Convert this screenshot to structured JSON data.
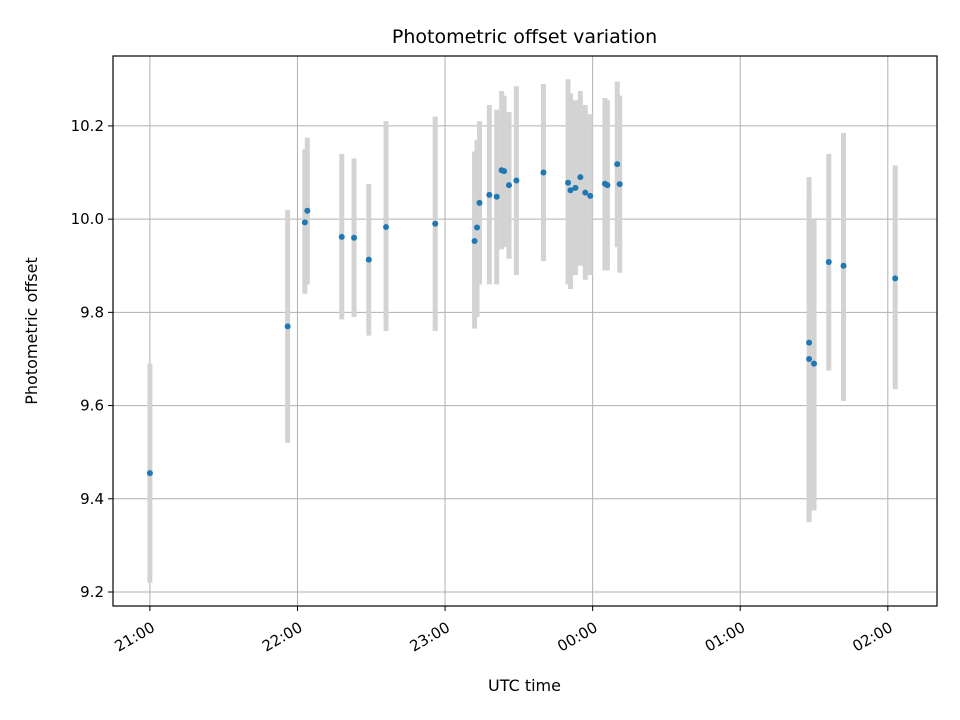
{
  "chart_data": {
    "type": "scatter",
    "title": "Photometric offset variation",
    "xlabel": "UTC time",
    "ylabel": "Photometric offset",
    "x_axis_type": "time",
    "x_reference_day": "day 0",
    "xlim": [
      "20:45",
      "02:20"
    ],
    "ylim": [
      9.17,
      10.35
    ],
    "x_ticks": [
      {
        "label": "21:00",
        "minutes": 1260
      },
      {
        "label": "22:00",
        "minutes": 1320
      },
      {
        "label": "23:00",
        "minutes": 1380
      },
      {
        "label": "00:00",
        "minutes": 1440
      },
      {
        "label": "01:00",
        "minutes": 1500
      },
      {
        "label": "02:00",
        "minutes": 1560
      }
    ],
    "y_ticks": [
      9.2,
      9.4,
      9.6,
      9.8,
      10.0,
      10.2
    ],
    "y_tick_labels": [
      "9.2",
      "9.4",
      "9.6",
      "9.8",
      "10.0",
      "10.2"
    ],
    "grid": true,
    "marker_color": "#1f77b4",
    "errorbar_color": "#d3d3d3",
    "points": [
      {
        "x": "21:00",
        "y": 9.455,
        "ylo": 9.22,
        "yhi": 9.69
      },
      {
        "x": "21:56",
        "y": 9.77,
        "ylo": 9.52,
        "yhi": 10.02
      },
      {
        "x": "22:03",
        "y": 9.993,
        "ylo": 9.84,
        "yhi": 10.15
      },
      {
        "x": "22:04",
        "y": 10.018,
        "ylo": 9.86,
        "yhi": 10.175
      },
      {
        "x": "22:18",
        "y": 9.962,
        "ylo": 9.785,
        "yhi": 10.14
      },
      {
        "x": "22:23",
        "y": 9.96,
        "ylo": 9.79,
        "yhi": 10.13
      },
      {
        "x": "22:29",
        "y": 9.913,
        "ylo": 9.75,
        "yhi": 10.075
      },
      {
        "x": "22:36",
        "y": 9.983,
        "ylo": 9.76,
        "yhi": 10.21
      },
      {
        "x": "22:56",
        "y": 9.99,
        "ylo": 9.76,
        "yhi": 10.22
      },
      {
        "x": "23:12",
        "y": 9.953,
        "ylo": 9.765,
        "yhi": 10.145
      },
      {
        "x": "23:13",
        "y": 9.982,
        "ylo": 9.79,
        "yhi": 10.17
      },
      {
        "x": "23:14",
        "y": 10.035,
        "ylo": 9.86,
        "yhi": 10.21
      },
      {
        "x": "23:18",
        "y": 10.052,
        "ylo": 9.86,
        "yhi": 10.245
      },
      {
        "x": "23:21",
        "y": 10.048,
        "ylo": 9.86,
        "yhi": 10.235
      },
      {
        "x": "23:23",
        "y": 10.105,
        "ylo": 9.935,
        "yhi": 10.275
      },
      {
        "x": "23:24",
        "y": 10.103,
        "ylo": 9.94,
        "yhi": 10.265
      },
      {
        "x": "23:26",
        "y": 10.073,
        "ylo": 9.915,
        "yhi": 10.23
      },
      {
        "x": "23:29",
        "y": 10.083,
        "ylo": 9.88,
        "yhi": 10.285
      },
      {
        "x": "23:40",
        "y": 10.1,
        "ylo": 9.91,
        "yhi": 10.29
      },
      {
        "x": "23:50",
        "y": 10.078,
        "ylo": 9.86,
        "yhi": 10.3
      },
      {
        "x": "23:51",
        "y": 10.062,
        "ylo": 9.85,
        "yhi": 10.27
      },
      {
        "x": "23:53",
        "y": 10.067,
        "ylo": 9.88,
        "yhi": 10.255
      },
      {
        "x": "23:55",
        "y": 10.09,
        "ylo": 9.9,
        "yhi": 10.275
      },
      {
        "x": "23:57",
        "y": 10.057,
        "ylo": 9.87,
        "yhi": 10.245
      },
      {
        "x": "23:59",
        "y": 10.05,
        "ylo": 9.88,
        "yhi": 10.225
      },
      {
        "x": "00:05",
        "y": 10.076,
        "ylo": 9.89,
        "yhi": 10.26
      },
      {
        "x": "00:06",
        "y": 10.073,
        "ylo": 9.89,
        "yhi": 10.255
      },
      {
        "x": "00:10",
        "y": 10.118,
        "ylo": 9.94,
        "yhi": 10.295
      },
      {
        "x": "00:11",
        "y": 10.075,
        "ylo": 9.885,
        "yhi": 10.265
      },
      {
        "x": "01:28",
        "y": 9.735,
        "ylo": 9.35,
        "yhi": 10.09
      },
      {
        "x": "01:28",
        "y": 9.7,
        "ylo": 9.35,
        "yhi": 10.045
      },
      {
        "x": "01:30",
        "y": 9.69,
        "ylo": 9.375,
        "yhi": 10.0
      },
      {
        "x": "01:36",
        "y": 9.908,
        "ylo": 9.675,
        "yhi": 10.14
      },
      {
        "x": "01:42",
        "y": 9.9,
        "ylo": 9.61,
        "yhi": 10.185
      },
      {
        "x": "02:03",
        "y": 9.873,
        "ylo": 9.635,
        "yhi": 10.115
      }
    ]
  }
}
